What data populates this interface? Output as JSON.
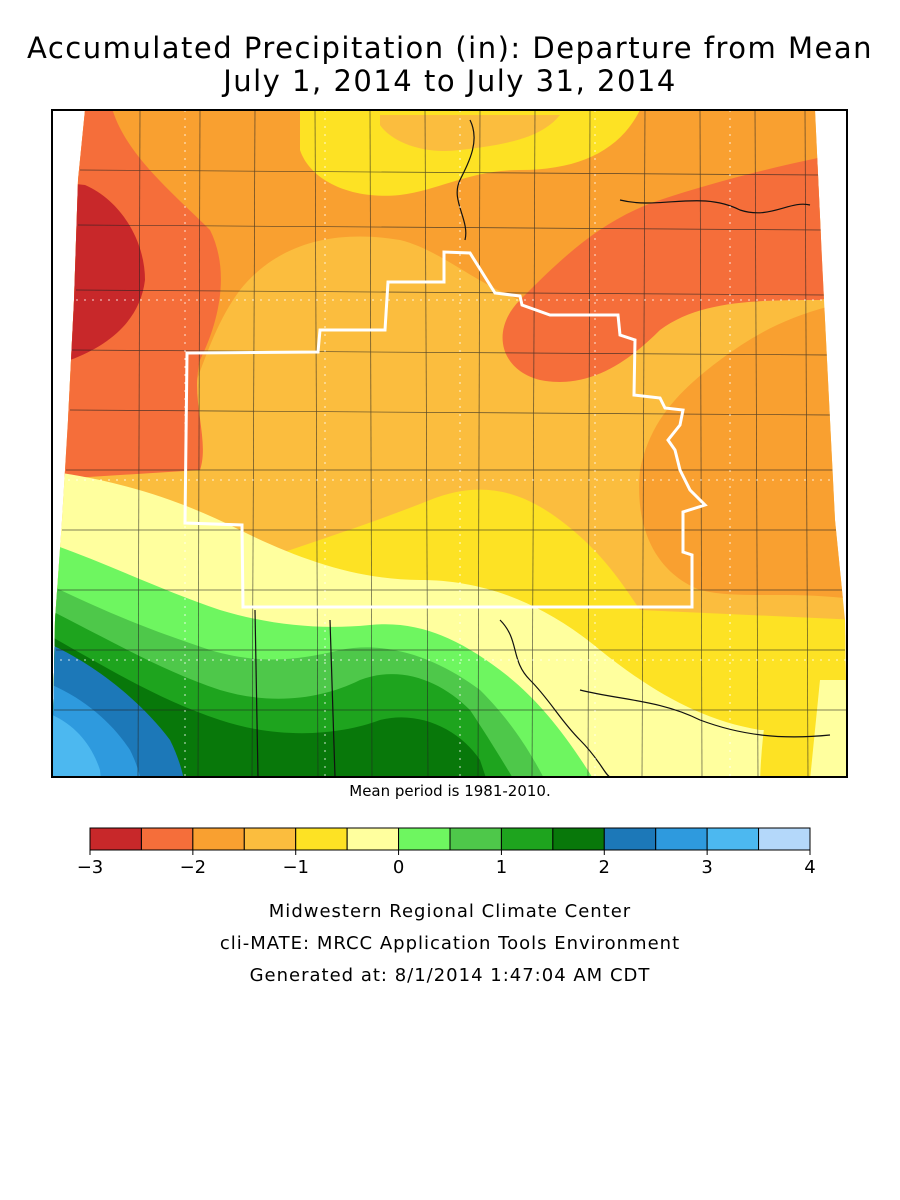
{
  "header": {
    "title_line1": "Accumulated Precipitation (in): Departure from Mean",
    "title_line2": "July 1, 2014 to July 31, 2014"
  },
  "map": {
    "mean_period_note": "Mean period is 1981-2010."
  },
  "legend": {
    "colors": [
      "#c8282a",
      "#f56e3a",
      "#f9a030",
      "#fbbd3e",
      "#fde224",
      "#ffff9e",
      "#6ef660",
      "#4ec84a",
      "#1ea41e",
      "#08780a",
      "#1c78b8",
      "#2e9ade",
      "#4cb8f0",
      "#b4d8fa"
    ],
    "tick_labels": [
      "−3",
      "−2",
      "−1",
      "0",
      "1",
      "2",
      "3",
      "4"
    ]
  },
  "footer": {
    "line1": "Midwestern Regional Climate Center",
    "line2": "cli-MATE: MRCC Application Tools Environment",
    "line3": "Generated at: 8/1/2014 1:47:04 AM CDT"
  }
}
